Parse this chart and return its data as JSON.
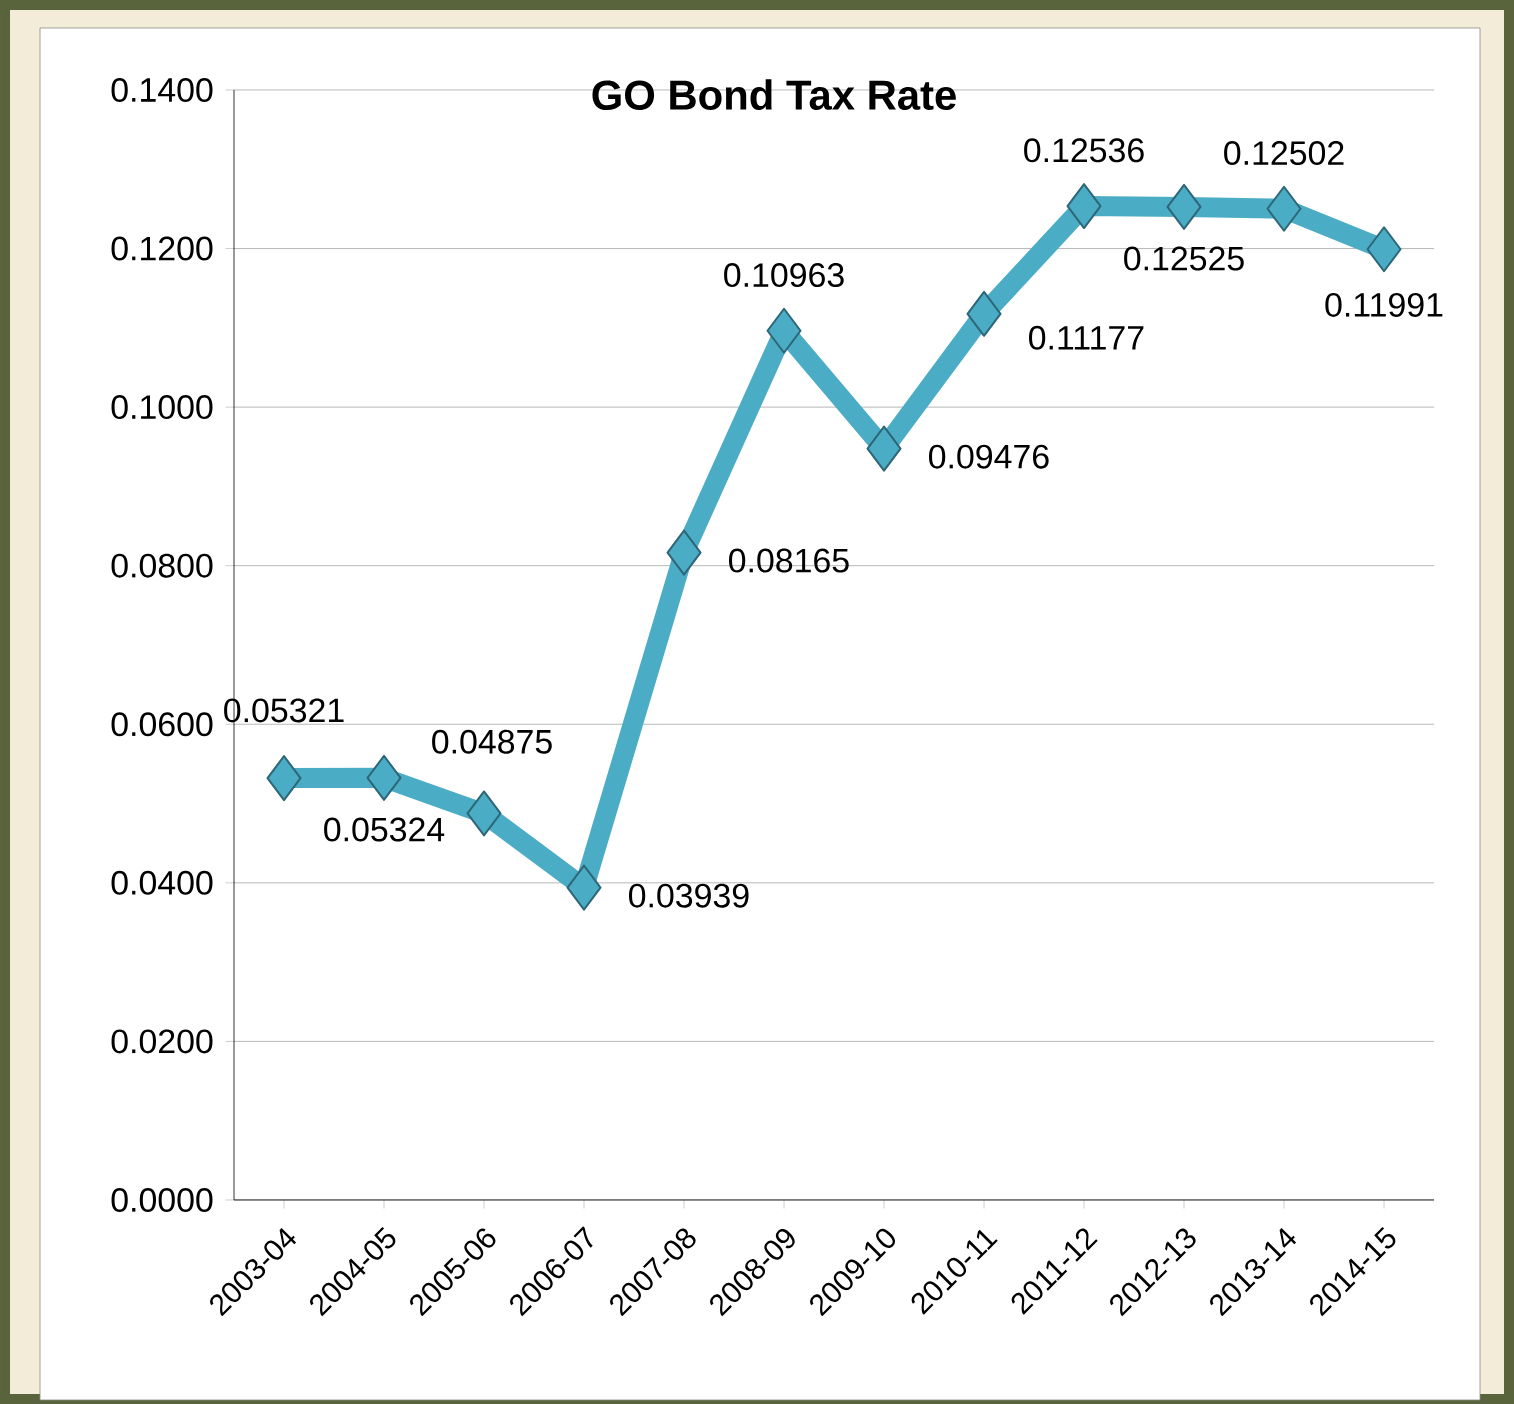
{
  "chart_data": {
    "type": "line",
    "title": "GO Bond Tax Rate",
    "categories": [
      "2003-04",
      "2004-05",
      "2005-06",
      "2006-07",
      "2007-08",
      "2008-09",
      "2009-10",
      "2010-11",
      "2011-12",
      "2012-13",
      "2013-14",
      "2014-15"
    ],
    "values": [
      0.05321,
      0.05324,
      0.04875,
      0.03939,
      0.08165,
      0.10963,
      0.09476,
      0.11177,
      0.12536,
      0.12525,
      0.12502,
      0.11991
    ],
    "color": "#4bacc6",
    "ylim": [
      0,
      0.14
    ],
    "yticks": [
      {
        "value": 0,
        "label": "0.0000"
      },
      {
        "value": 0.02,
        "label": "0.0200"
      },
      {
        "value": 0.04,
        "label": "0.0400"
      },
      {
        "value": 0.06,
        "label": "0.0600"
      },
      {
        "value": 0.08,
        "label": "0.0800"
      },
      {
        "value": 0.1,
        "label": "0.1000"
      },
      {
        "value": 0.12,
        "label": "0.1200"
      },
      {
        "value": 0.14,
        "label": "0.1400"
      }
    ],
    "grid": "y",
    "marker": "diamond",
    "line_style": "solid",
    "data_labels": true
  }
}
